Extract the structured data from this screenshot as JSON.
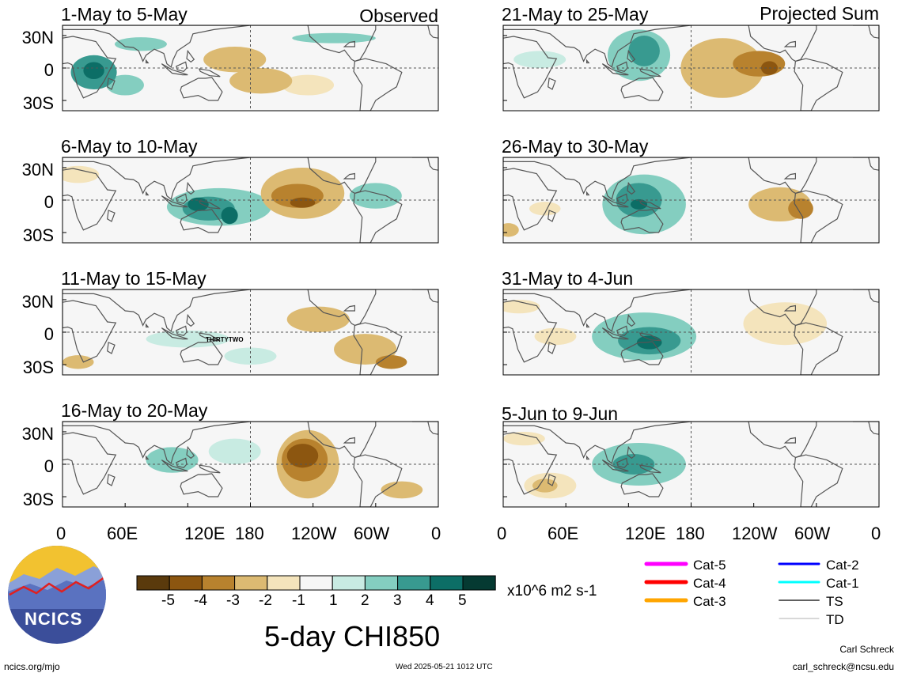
{
  "chart_data": {
    "type": "heatmap",
    "title": "5-day CHI850",
    "variable": "CHI850",
    "units": "x10^6 m2 s-1",
    "observed_label": "Observed",
    "projected_label": "Projected Sum",
    "colorbar": {
      "levels": [
        -5,
        -4,
        -3,
        -2,
        -1,
        1,
        2,
        3,
        4,
        5
      ],
      "tick_labels": [
        "-5",
        "-4",
        "-3",
        "-2",
        "-1",
        "1",
        "2",
        "3",
        "4",
        "5"
      ],
      "colors": [
        "#5a3a0c",
        "#8c5610",
        "#b8822e",
        "#dcba72",
        "#f4e4bc",
        "#f6f6f6",
        "#c8ebe2",
        "#84cec0",
        "#389a90",
        "#0c6e66",
        "#053a32"
      ]
    },
    "yticks": [
      "30N",
      "0",
      "30S"
    ],
    "xticks": [
      "0",
      "60E",
      "120E",
      "180",
      "120W",
      "60W",
      "0"
    ],
    "panels": [
      {
        "label": "1-May to 5-May",
        "kind": "observed",
        "blobs": [
          {
            "lon": 30,
            "lat": -5,
            "rx": 22,
            "ry": 20,
            "v": 3
          },
          {
            "lon": 30,
            "lat": -3,
            "rx": 10,
            "ry": 10,
            "v": 4
          },
          {
            "lon": 60,
            "lat": -20,
            "rx": 18,
            "ry": 12,
            "v": 2
          },
          {
            "lon": 75,
            "lat": 28,
            "rx": 25,
            "ry": 8,
            "v": 2
          },
          {
            "lon": 165,
            "lat": 10,
            "rx": 30,
            "ry": 15,
            "v": -2
          },
          {
            "lon": 190,
            "lat": -15,
            "rx": 30,
            "ry": 15,
            "v": -2
          },
          {
            "lon": 235,
            "lat": -20,
            "rx": 25,
            "ry": 12,
            "v": -1
          },
          {
            "lon": 260,
            "lat": 35,
            "rx": 40,
            "ry": 6,
            "v": 2
          }
        ]
      },
      {
        "label": "6-May to 10-May",
        "kind": "observed",
        "blobs": [
          {
            "lon": 150,
            "lat": -8,
            "rx": 50,
            "ry": 22,
            "v": 2
          },
          {
            "lon": 140,
            "lat": -10,
            "rx": 25,
            "ry": 14,
            "v": 3
          },
          {
            "lon": 130,
            "lat": -5,
            "rx": 10,
            "ry": 8,
            "v": 4
          },
          {
            "lon": 160,
            "lat": -18,
            "rx": 8,
            "ry": 10,
            "v": 4
          },
          {
            "lon": 15,
            "lat": 30,
            "rx": 20,
            "ry": 10,
            "v": -1
          },
          {
            "lon": 230,
            "lat": 8,
            "rx": 40,
            "ry": 30,
            "v": -2
          },
          {
            "lon": 225,
            "lat": 5,
            "rx": 25,
            "ry": 14,
            "v": -3
          },
          {
            "lon": 230,
            "lat": -3,
            "rx": 12,
            "ry": 6,
            "v": -4
          },
          {
            "lon": 300,
            "lat": 5,
            "rx": 25,
            "ry": 15,
            "v": 2
          }
        ]
      },
      {
        "label": "11-May to 15-May",
        "kind": "observed",
        "blobs": [
          {
            "lon": 15,
            "lat": -35,
            "rx": 15,
            "ry": 8,
            "v": -2
          },
          {
            "lon": 120,
            "lat": -8,
            "rx": 40,
            "ry": 10,
            "v": 1
          },
          {
            "lon": 180,
            "lat": -28,
            "rx": 25,
            "ry": 10,
            "v": 1
          },
          {
            "lon": 245,
            "lat": 15,
            "rx": 30,
            "ry": 15,
            "v": -2
          },
          {
            "lon": 290,
            "lat": -20,
            "rx": 30,
            "ry": 18,
            "v": -2
          },
          {
            "lon": 315,
            "lat": -35,
            "rx": 15,
            "ry": 8,
            "v": -3
          }
        ]
      },
      {
        "label": "16-May to 20-May",
        "kind": "observed",
        "blobs": [
          {
            "lon": 105,
            "lat": 5,
            "rx": 25,
            "ry": 15,
            "v": 2
          },
          {
            "lon": 165,
            "lat": 15,
            "rx": 25,
            "ry": 15,
            "v": 1
          },
          {
            "lon": 235,
            "lat": 0,
            "rx": 30,
            "ry": 40,
            "v": -2
          },
          {
            "lon": 232,
            "lat": 5,
            "rx": 22,
            "ry": 25,
            "v": -3
          },
          {
            "lon": 230,
            "lat": 10,
            "rx": 15,
            "ry": 14,
            "v": -4
          },
          {
            "lon": 325,
            "lat": -30,
            "rx": 20,
            "ry": 10,
            "v": -2
          }
        ]
      },
      {
        "label": "21-May to 25-May",
        "kind": "projected",
        "blobs": [
          {
            "lon": 130,
            "lat": 15,
            "rx": 30,
            "ry": 30,
            "v": 2
          },
          {
            "lon": 135,
            "lat": 20,
            "rx": 15,
            "ry": 18,
            "v": 3
          },
          {
            "lon": 35,
            "lat": 10,
            "rx": 25,
            "ry": 10,
            "v": 1
          },
          {
            "lon": 210,
            "lat": 0,
            "rx": 40,
            "ry": 35,
            "v": -2
          },
          {
            "lon": 245,
            "lat": 5,
            "rx": 25,
            "ry": 15,
            "v": -3
          },
          {
            "lon": 255,
            "lat": 0,
            "rx": 8,
            "ry": 8,
            "v": -4
          }
        ]
      },
      {
        "label": "26-May to 30-May",
        "kind": "projected",
        "blobs": [
          {
            "lon": 135,
            "lat": -5,
            "rx": 40,
            "ry": 35,
            "v": 2
          },
          {
            "lon": 130,
            "lat": 0,
            "rx": 22,
            "ry": 20,
            "v": 3
          },
          {
            "lon": 130,
            "lat": -5,
            "rx": 8,
            "ry": 6,
            "v": 4
          },
          {
            "lon": 40,
            "lat": -10,
            "rx": 15,
            "ry": 8,
            "v": -1
          },
          {
            "lon": 265,
            "lat": -5,
            "rx": 30,
            "ry": 20,
            "v": -2
          },
          {
            "lon": 285,
            "lat": -10,
            "rx": 12,
            "ry": 12,
            "v": -3
          },
          {
            "lon": 5,
            "lat": -35,
            "rx": 10,
            "ry": 8,
            "v": -2
          }
        ]
      },
      {
        "label": "31-May to 4-Jun",
        "kind": "projected",
        "blobs": [
          {
            "lon": 135,
            "lat": -5,
            "rx": 50,
            "ry": 28,
            "v": 2
          },
          {
            "lon": 140,
            "lat": -10,
            "rx": 30,
            "ry": 16,
            "v": 3
          },
          {
            "lon": 140,
            "lat": -12,
            "rx": 12,
            "ry": 8,
            "v": 4
          },
          {
            "lon": 50,
            "lat": -5,
            "rx": 20,
            "ry": 10,
            "v": -1
          },
          {
            "lon": 15,
            "lat": 30,
            "rx": 20,
            "ry": 8,
            "v": -1
          },
          {
            "lon": 270,
            "lat": 10,
            "rx": 40,
            "ry": 25,
            "v": -1
          }
        ]
      },
      {
        "label": "5-Jun to 9-Jun",
        "kind": "projected",
        "blobs": [
          {
            "lon": 130,
            "lat": 0,
            "rx": 45,
            "ry": 25,
            "v": 2
          },
          {
            "lon": 125,
            "lat": 0,
            "rx": 20,
            "ry": 12,
            "v": 3
          },
          {
            "lon": 45,
            "lat": -25,
            "rx": 25,
            "ry": 15,
            "v": -1
          },
          {
            "lon": 40,
            "lat": -25,
            "rx": 12,
            "ry": 8,
            "v": -2
          },
          {
            "lon": 20,
            "lat": 30,
            "rx": 20,
            "ry": 8,
            "v": -1
          }
        ]
      }
    ]
  },
  "storm_label": "THIRTYTWO",
  "legend": {
    "items": [
      {
        "label": "Cat-5",
        "color": "#ff00ff"
      },
      {
        "label": "Cat-4",
        "color": "#ff0000"
      },
      {
        "label": "Cat-3",
        "color": "#ffa500"
      },
      {
        "label": "Cat-2",
        "color": "#0000ff"
      },
      {
        "label": "Cat-1",
        "color": "#00ffff"
      },
      {
        "label": "TS",
        "color": "#606060"
      },
      {
        "label": "TD",
        "color": "#b0b0b0"
      }
    ]
  },
  "logo": {
    "text": "NCICS"
  },
  "footer": {
    "site": "ncics.org/mjo",
    "timestamp": "Wed 2025-05-21 1012 UTC",
    "author": "Carl Schreck",
    "email": "carl_schreck@ncsu.edu"
  }
}
